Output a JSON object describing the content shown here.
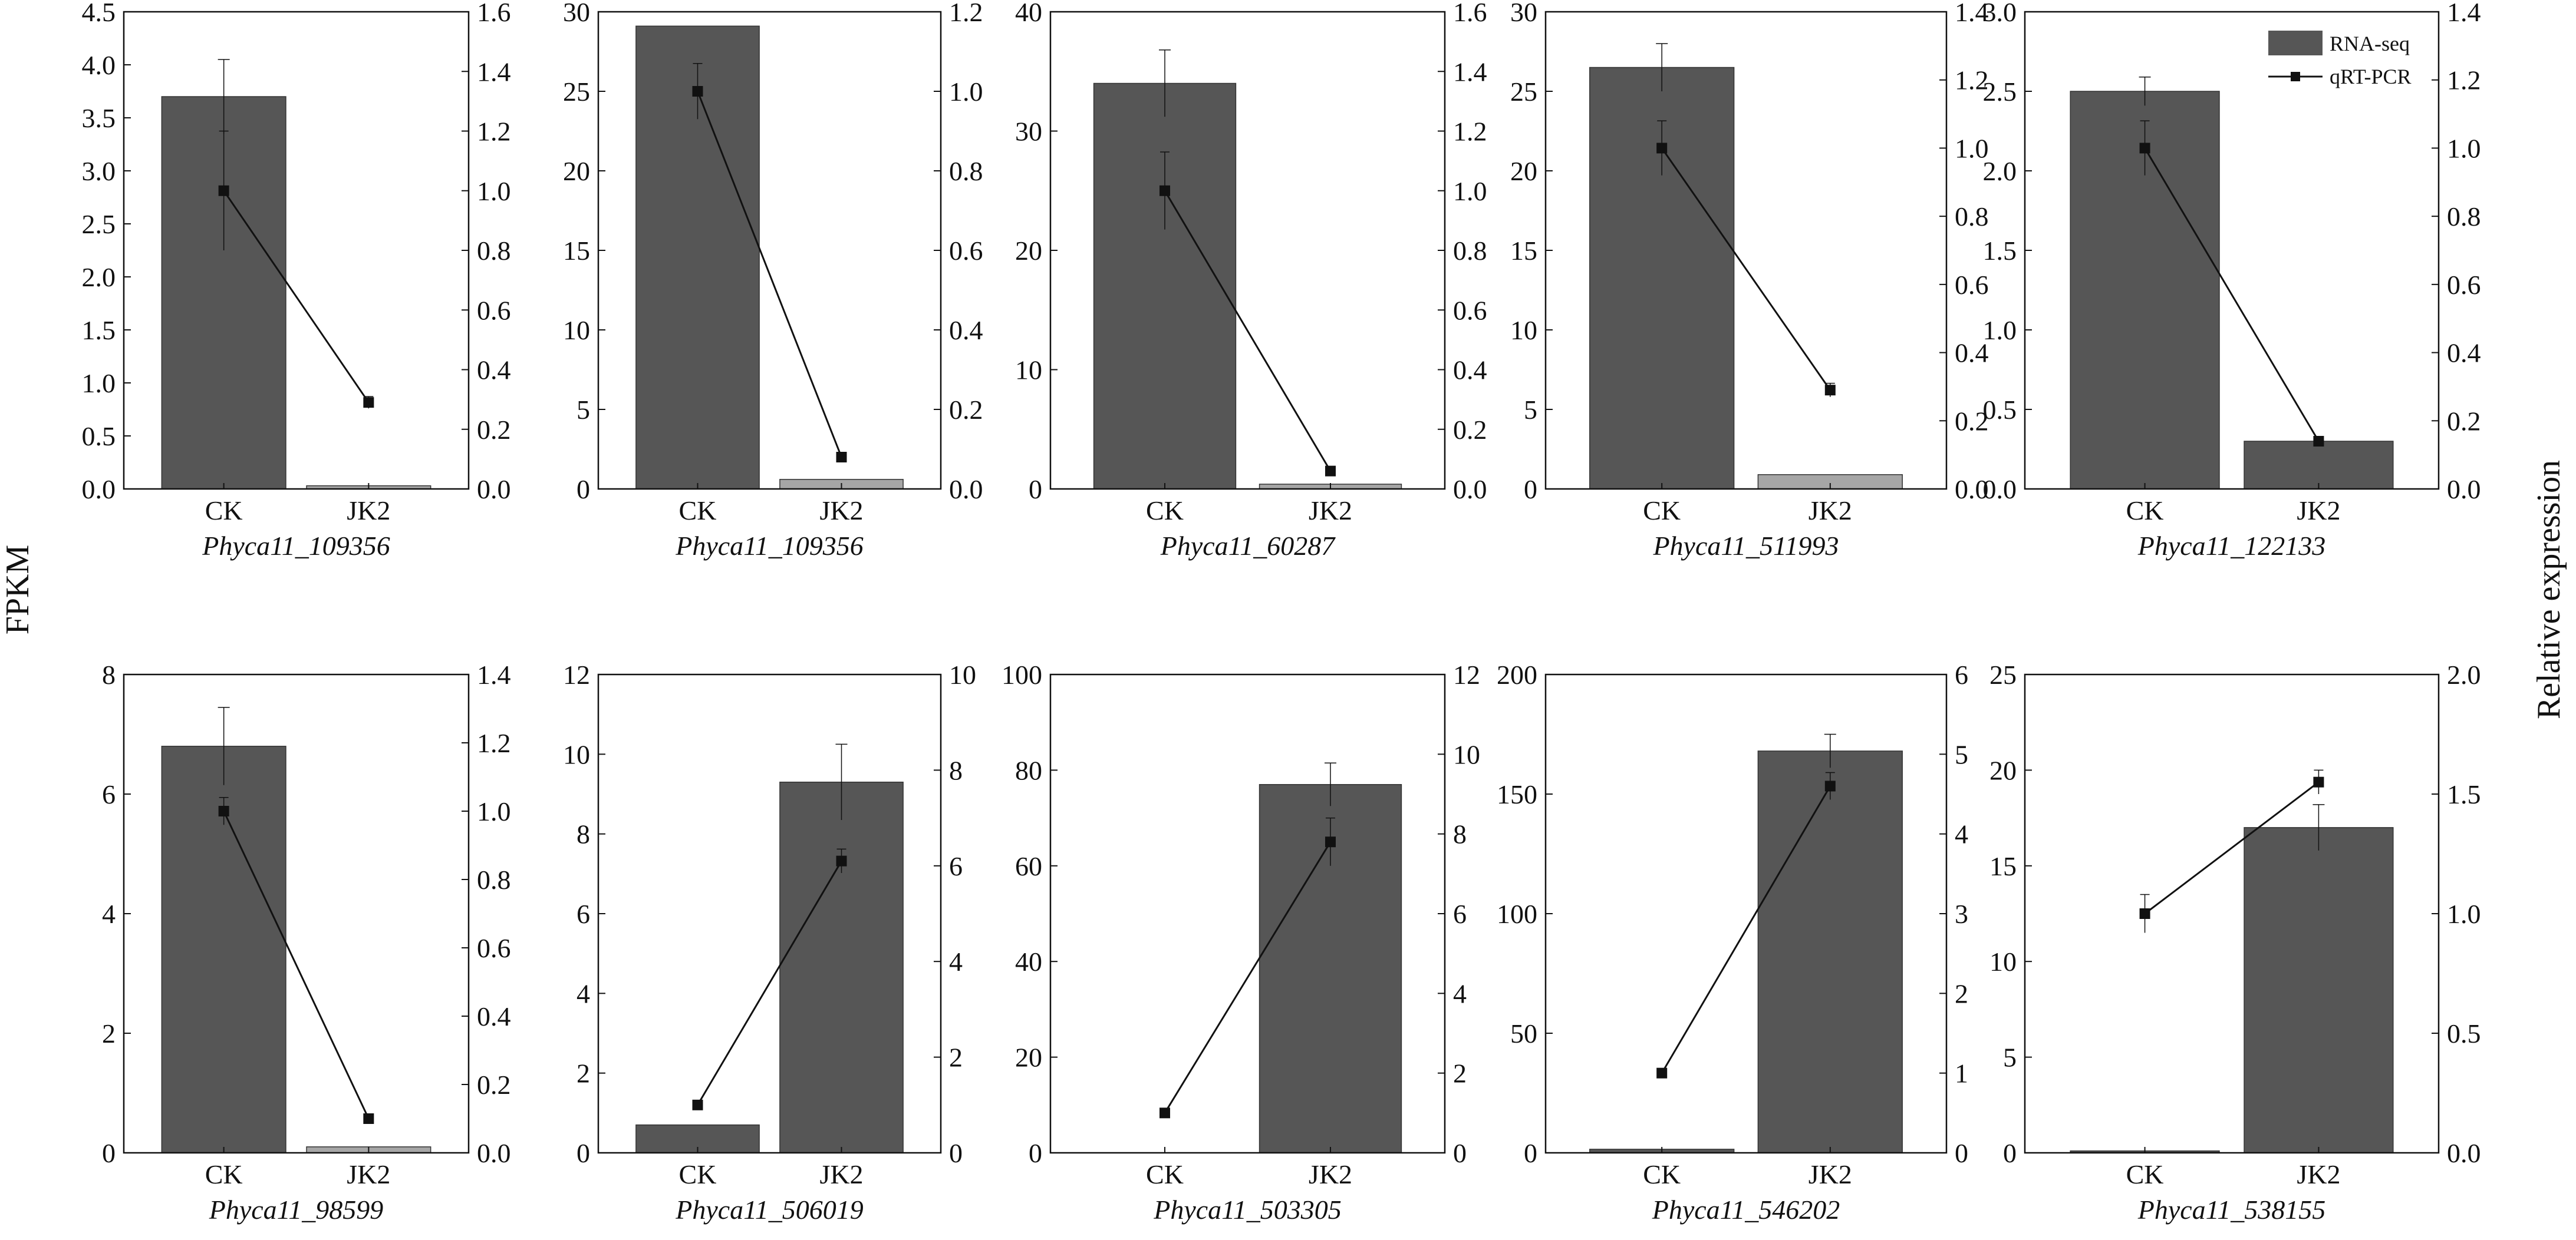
{
  "figure": {
    "left_axis_title": "FPKM",
    "right_axis_title": "Relative expression",
    "legend": {
      "rnaseq_label": "RNA-seq",
      "qpcr_label": "qRT-PCR"
    },
    "colors": {
      "bar": "#565656",
      "bar_light": "#a6a6a6",
      "line": "#111111",
      "axis": "#111111"
    }
  },
  "chart_data": [
    {
      "type": "bar",
      "title": "Phyca11_109356",
      "categories": [
        "CK",
        "JK2"
      ],
      "series": [
        {
          "name": "RNA-seq",
          "values": [
            3.7,
            0.03
          ],
          "error": [
            0.35,
            0.0
          ]
        },
        {
          "name": "qRT-PCR",
          "type": "line",
          "values": [
            1.0,
            0.29
          ],
          "error": [
            0.2,
            0.02
          ]
        }
      ],
      "ylim": [
        0,
        4.5
      ],
      "yticks": [
        "0.0",
        "0.5",
        "1.0",
        "1.5",
        "2.0",
        "2.5",
        "3.0",
        "3.5",
        "4.0",
        "4.5"
      ],
      "y2lim": [
        0,
        1.6
      ],
      "y2ticks": [
        "0.0",
        "0.2",
        "0.4",
        "0.6",
        "0.8",
        "1.0",
        "1.2",
        "1.4",
        "1.6"
      ]
    },
    {
      "type": "bar",
      "title": "Phyca11_109356",
      "categories": [
        "CK",
        "JK2"
      ],
      "series": [
        {
          "name": "RNA-seq",
          "values": [
            29.1,
            0.6
          ],
          "error": [
            0.0,
            0.0
          ]
        },
        {
          "name": "qRT-PCR",
          "type": "line",
          "values": [
            1.0,
            0.08
          ],
          "error": [
            0.07,
            0.0
          ]
        }
      ],
      "ylim": [
        0,
        30
      ],
      "yticks": [
        "0",
        "5",
        "10",
        "15",
        "20",
        "25",
        "30"
      ],
      "y2lim": [
        0,
        1.2
      ],
      "y2ticks": [
        "0.0",
        "0.2",
        "0.4",
        "0.6",
        "0.8",
        "1.0",
        "1.2"
      ]
    },
    {
      "type": "bar",
      "title": "Phyca11_60287",
      "categories": [
        "CK",
        "JK2"
      ],
      "series": [
        {
          "name": "RNA-seq",
          "values": [
            34.0,
            0.4
          ],
          "error": [
            2.8,
            0.0
          ]
        },
        {
          "name": "qRT-PCR",
          "type": "line",
          "values": [
            1.0,
            0.06
          ],
          "error": [
            0.13,
            0.0
          ]
        }
      ],
      "ylim": [
        0,
        40
      ],
      "yticks": [
        "0",
        "10",
        "20",
        "30",
        "40"
      ],
      "y2lim": [
        0,
        1.6
      ],
      "y2ticks": [
        "0.0",
        "0.2",
        "0.4",
        "0.6",
        "0.8",
        "1.0",
        "1.2",
        "1.4",
        "1.6"
      ]
    },
    {
      "type": "bar",
      "title": "Phyca11_511993",
      "categories": [
        "CK",
        "JK2"
      ],
      "series": [
        {
          "name": "RNA-seq",
          "values": [
            26.5,
            0.9
          ],
          "error": [
            1.5,
            0.0
          ]
        },
        {
          "name": "qRT-PCR",
          "type": "line",
          "values": [
            1.0,
            0.29
          ],
          "error": [
            0.08,
            0.02
          ]
        }
      ],
      "ylim": [
        0,
        30
      ],
      "yticks": [
        "0",
        "5",
        "10",
        "15",
        "20",
        "25",
        "30"
      ],
      "y2lim": [
        0,
        1.4
      ],
      "y2ticks": [
        "0.0",
        "0.2",
        "0.4",
        "0.6",
        "0.8",
        "1.0",
        "1.2",
        "1.4"
      ]
    },
    {
      "type": "bar",
      "title": "Phyca11_122133",
      "categories": [
        "CK",
        "JK2"
      ],
      "series": [
        {
          "name": "RNA-seq",
          "values": [
            2.5,
            0.3
          ],
          "error": [
            0.09,
            0.0
          ]
        },
        {
          "name": "qRT-PCR",
          "type": "line",
          "values": [
            1.0,
            0.14
          ],
          "error": [
            0.08,
            0.0
          ]
        }
      ],
      "ylim": [
        0,
        3.0
      ],
      "yticks": [
        "0.0",
        "0.5",
        "1.0",
        "1.5",
        "2.0",
        "2.5",
        "3.0"
      ],
      "y2lim": [
        0,
        1.4
      ],
      "y2ticks": [
        "0.0",
        "0.2",
        "0.4",
        "0.6",
        "0.8",
        "1.0",
        "1.2",
        "1.4"
      ]
    },
    {
      "type": "bar",
      "title": "Phyca11_98599",
      "categories": [
        "CK",
        "JK2"
      ],
      "series": [
        {
          "name": "RNA-seq",
          "values": [
            6.8,
            0.1
          ],
          "error": [
            0.65,
            0.0
          ]
        },
        {
          "name": "qRT-PCR",
          "type": "line",
          "values": [
            1.0,
            0.1
          ],
          "error": [
            0.04,
            0.0
          ]
        }
      ],
      "ylim": [
        0,
        8
      ],
      "yticks": [
        "0",
        "2",
        "4",
        "6",
        "8"
      ],
      "y2lim": [
        0,
        1.4
      ],
      "y2ticks": [
        "0.0",
        "0.2",
        "0.4",
        "0.6",
        "0.8",
        "1.0",
        "1.2",
        "1.4"
      ]
    },
    {
      "type": "bar",
      "title": "Phyca11_506019",
      "categories": [
        "CK",
        "JK2"
      ],
      "series": [
        {
          "name": "RNA-seq",
          "values": [
            0.7,
            9.3
          ],
          "error": [
            0.0,
            0.95
          ]
        },
        {
          "name": "qRT-PCR",
          "type": "line",
          "values": [
            1.0,
            6.1
          ],
          "error": [
            0.0,
            0.25
          ]
        }
      ],
      "ylim": [
        0,
        12
      ],
      "yticks": [
        "0",
        "2",
        "4",
        "6",
        "8",
        "10",
        "12"
      ],
      "y2lim": [
        0,
        10
      ],
      "y2ticks": [
        "0",
        "2",
        "4",
        "6",
        "8",
        "10"
      ]
    },
    {
      "type": "bar",
      "title": "Phyca11_503305",
      "categories": [
        "CK",
        "JK2"
      ],
      "series": [
        {
          "name": "RNA-seq",
          "values": [
            0.0,
            77.0
          ],
          "error": [
            0.0,
            4.5
          ]
        },
        {
          "name": "qRT-PCR",
          "type": "line",
          "values": [
            1.0,
            7.8
          ],
          "error": [
            0.06,
            0.6
          ]
        }
      ],
      "ylim": [
        0,
        100
      ],
      "yticks": [
        "0",
        "20",
        "40",
        "60",
        "80",
        "100"
      ],
      "y2lim": [
        0,
        12
      ],
      "y2ticks": [
        "0",
        "2",
        "4",
        "6",
        "8",
        "10",
        "12"
      ]
    },
    {
      "type": "bar",
      "title": "Phyca11_546202",
      "categories": [
        "CK",
        "JK2"
      ],
      "series": [
        {
          "name": "RNA-seq",
          "values": [
            1.5,
            168.0
          ],
          "error": [
            0.0,
            7.0
          ]
        },
        {
          "name": "qRT-PCR",
          "type": "line",
          "values": [
            1.0,
            4.6
          ],
          "error": [
            0.04,
            0.17
          ]
        }
      ],
      "ylim": [
        0,
        200
      ],
      "yticks": [
        "0",
        "50",
        "100",
        "150",
        "200"
      ],
      "y2lim": [
        0,
        6
      ],
      "y2ticks": [
        "0",
        "1",
        "2",
        "3",
        "4",
        "5",
        "6"
      ]
    },
    {
      "type": "bar",
      "title": "Phyca11_538155",
      "categories": [
        "CK",
        "JK2"
      ],
      "series": [
        {
          "name": "RNA-seq",
          "values": [
            0.1,
            17.0
          ],
          "error": [
            0.0,
            1.2
          ]
        },
        {
          "name": "qRT-PCR",
          "type": "line",
          "values": [
            1.0,
            1.55
          ],
          "error": [
            0.08,
            0.05
          ]
        }
      ],
      "ylim": [
        0,
        25
      ],
      "yticks": [
        "0",
        "5",
        "10",
        "15",
        "20",
        "25"
      ],
      "y2lim": [
        0,
        2.0
      ],
      "y2ticks": [
        "0.0",
        "0.5",
        "1.0",
        "1.5",
        "2.0"
      ]
    }
  ]
}
